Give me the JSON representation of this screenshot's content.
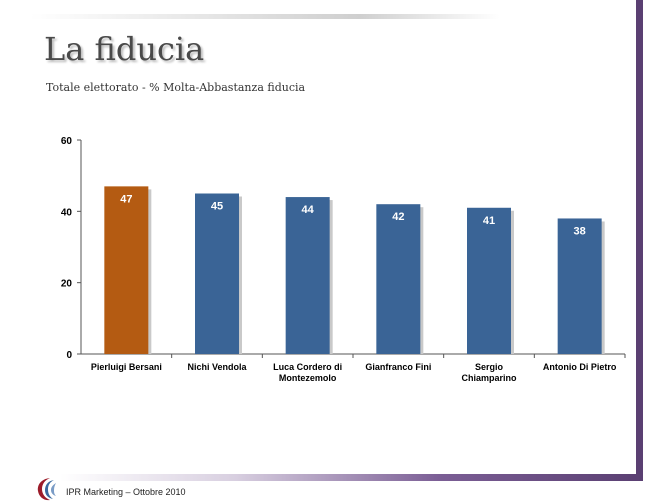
{
  "slide": {
    "title": "La fiducia",
    "subtitle": "Totale elettorato - % Molta-Abbastanza fiducia",
    "footer": "IPR Marketing – Ottobre 2010"
  },
  "colors": {
    "highlight_bar": "#b45b12",
    "bar": "#3a6496",
    "frame": "#5a3f72"
  },
  "chart_data": {
    "type": "bar",
    "categories": [
      [
        "Pierluigi Bersani"
      ],
      [
        "Nichi Vendola"
      ],
      [
        "Luca Cordero di",
        "Montezemolo"
      ],
      [
        "Gianfranco Fini"
      ],
      [
        "Sergio",
        "Chiamparino"
      ],
      [
        "Antonio Di Pietro"
      ]
    ],
    "values": [
      47,
      45,
      44,
      42,
      41,
      38
    ],
    "highlight_index": 0,
    "ylim": [
      0,
      60
    ],
    "yticks": [
      0,
      20,
      40,
      60
    ],
    "grid": false,
    "data_labels": true
  }
}
